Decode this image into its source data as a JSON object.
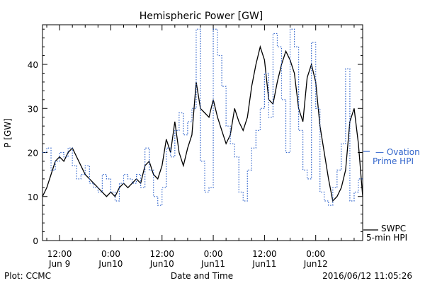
{
  "chart_data": {
    "type": "line",
    "title": "Hemispheric Power [GW]",
    "xlabel": "Date and Time",
    "ylabel": "P [GW]",
    "ylim": [
      0,
      49
    ],
    "yticks": [
      0,
      10,
      20,
      30,
      40
    ],
    "xticks": [
      {
        "t": 12,
        "top": "12:00",
        "bottom": "Jun 9"
      },
      {
        "t": 24,
        "top": "0:00",
        "bottom": "Jun10"
      },
      {
        "t": 36,
        "top": "12:00",
        "bottom": "Jun10"
      },
      {
        "t": 48,
        "top": "0:00",
        "bottom": "Jun11"
      },
      {
        "t": 60,
        "top": "12:00",
        "bottom": "Jun11"
      },
      {
        "t": 72,
        "top": "0:00",
        "bottom": "Jun12"
      }
    ],
    "xlim": [
      8,
      83
    ],
    "series": [
      {
        "name": "SWPC 5-min HPI",
        "legend_lines": [
          "SWPC",
          "5-min HPI"
        ],
        "color": "#000000",
        "style": "solid",
        "x": [
          8,
          9,
          10,
          11,
          12,
          13,
          14,
          15,
          16,
          17,
          18,
          19,
          20,
          21,
          22,
          23,
          24,
          25,
          26,
          27,
          28,
          29,
          30,
          31,
          32,
          33,
          34,
          35,
          36,
          37,
          38,
          39,
          40,
          41,
          42,
          43,
          44,
          45,
          46,
          47,
          48,
          49,
          50,
          51,
          52,
          53,
          54,
          55,
          56,
          57,
          58,
          59,
          60,
          61,
          62,
          63,
          64,
          65,
          66,
          67,
          68,
          69,
          70,
          71,
          72,
          73,
          74,
          75,
          76,
          77,
          78,
          79,
          80,
          81,
          82,
          83
        ],
        "values": [
          10,
          12,
          15,
          18,
          19,
          18,
          20,
          21,
          19,
          17,
          15,
          14,
          13,
          12,
          11,
          10,
          11,
          10,
          12,
          13,
          12,
          13,
          14,
          13,
          17,
          18,
          15,
          14,
          17,
          23,
          20,
          27,
          20,
          17,
          21,
          24,
          36,
          30,
          29,
          28,
          32,
          28,
          25,
          22,
          24,
          30,
          27,
          25,
          28,
          35,
          40,
          44,
          41,
          32,
          31,
          36,
          40,
          43,
          41,
          38,
          30,
          27,
          37,
          40,
          36,
          26,
          20,
          14,
          9,
          10,
          12,
          16,
          27,
          30,
          22,
          10
        ]
      },
      {
        "name": "Ovation Prime HPI",
        "legend_lines": [
          "Ovation",
          "Prime HPI"
        ],
        "color": "#3366cc",
        "style": "dotted-step",
        "x": [
          8,
          9,
          10,
          11,
          12,
          13,
          14,
          15,
          16,
          17,
          18,
          19,
          20,
          21,
          22,
          23,
          24,
          25,
          26,
          27,
          28,
          29,
          30,
          31,
          32,
          33,
          34,
          35,
          36,
          37,
          38,
          39,
          40,
          41,
          42,
          43,
          44,
          45,
          46,
          47,
          48,
          49,
          50,
          51,
          52,
          53,
          54,
          55,
          56,
          57,
          58,
          59,
          60,
          61,
          62,
          63,
          64,
          65,
          66,
          67,
          68,
          69,
          70,
          71,
          72,
          73,
          74,
          75,
          76,
          77,
          78,
          79,
          80,
          81,
          82,
          83
        ],
        "values": [
          20,
          21,
          16,
          18,
          20,
          19,
          21,
          17,
          14,
          15,
          17,
          13,
          12,
          11,
          15,
          14,
          11,
          9,
          13,
          15,
          14,
          13,
          15,
          12,
          21,
          16,
          10,
          8,
          12,
          21,
          19,
          25,
          29,
          24,
          27,
          30,
          48,
          18,
          11,
          12,
          48,
          42,
          35,
          26,
          22,
          19,
          11,
          9,
          16,
          21,
          25,
          30,
          38,
          28,
          47,
          44,
          32,
          20,
          48,
          44,
          25,
          16,
          14,
          45,
          30,
          11,
          9,
          8,
          12,
          16,
          22,
          39,
          9,
          11,
          14,
          14
        ]
      }
    ]
  },
  "footer": {
    "left": "Plot: CCMC",
    "right": "2016/06/12 11:05:26"
  }
}
